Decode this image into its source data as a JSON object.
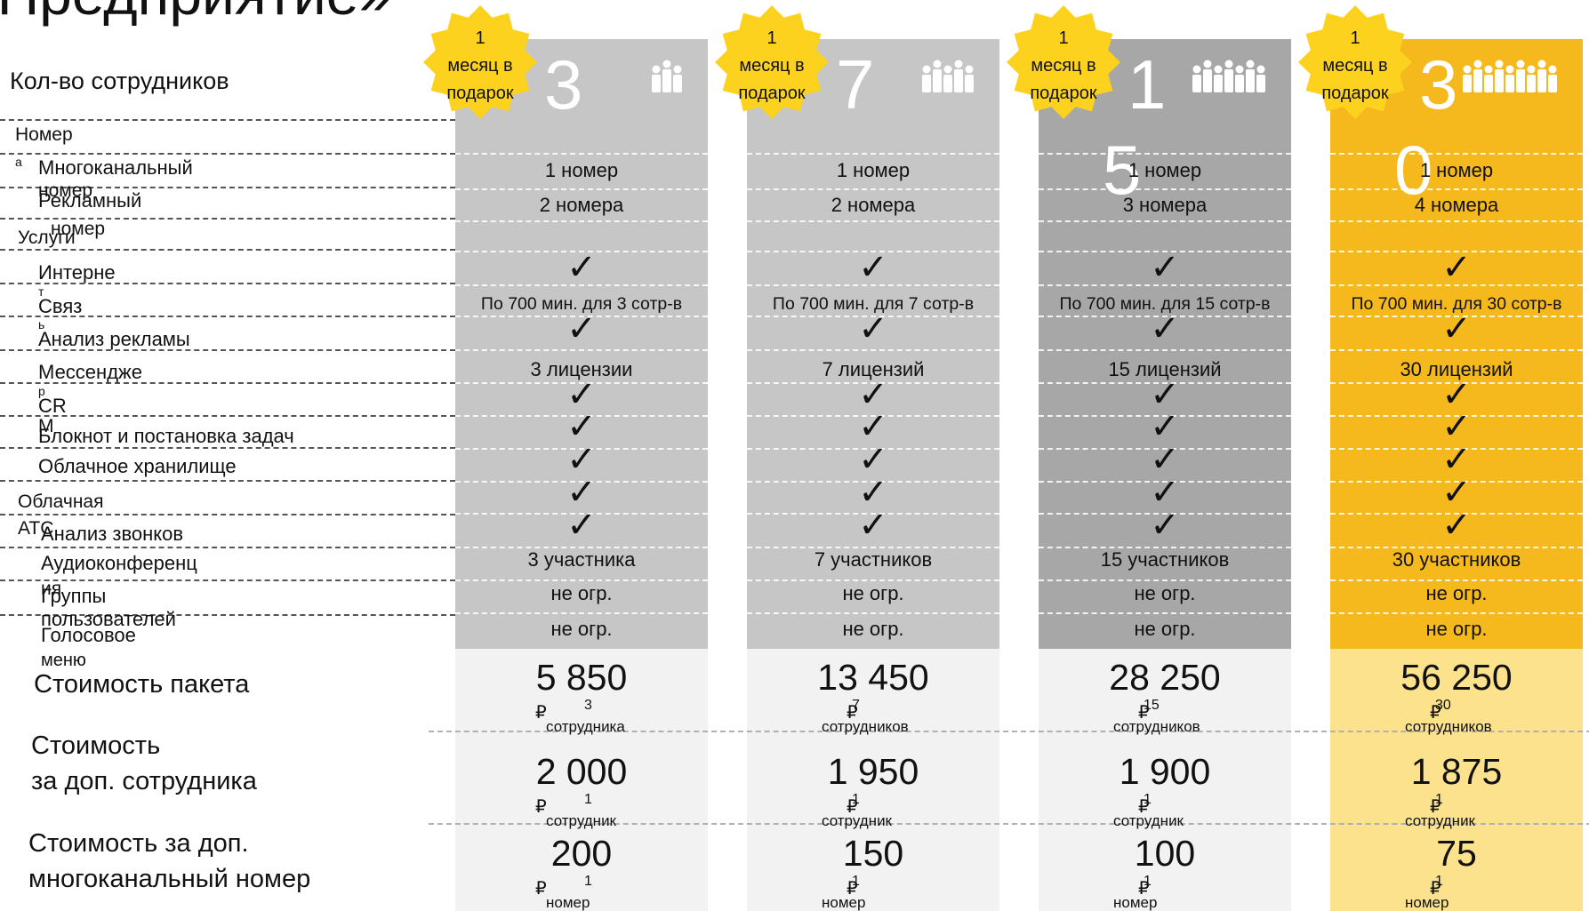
{
  "title": "«Предприятие»",
  "header_left": "Кол-во сотрудников",
  "gift": {
    "line1": "1",
    "line2": "месяц в",
    "line3": "подарок"
  },
  "labels": {
    "numbers_cat": "Номер",
    "numbers_cat_tail": "а",
    "multichannel": "Многоканальный",
    "multichannel_tail": "номер",
    "ad_number": "Рекламный",
    "ad_number_tail": "номер",
    "services_cat": "Услуги",
    "internet": "Интерне",
    "internet_tail": "т",
    "connection": "Связ",
    "connection_tail": "ь",
    "ad_analysis": "Анализ рекламы",
    "messenger": "Мессендже",
    "messenger_tail": "р",
    "crm": "CR",
    "crm_tail": "M",
    "notebook": "Блокнот и постановка задач",
    "cloud_storage": "Облачное хранилище",
    "cloud_pbx_cat": "Облачная",
    "cloud_pbx_cat_tail": "АТС",
    "call_analysis": "Анализ звонков",
    "audioconf": "Аудиоконференц",
    "audioconf_tail": "ия",
    "user_groups": "Группы",
    "user_groups_tail": "пользователей",
    "voice_menu": "Голосовое",
    "voice_menu_tail": "меню",
    "package_cost": "Стоимость пакета",
    "extra_emp_cost_1": "Стоимость",
    "extra_emp_cost_2": "за доп. сотрудника",
    "extra_num_cost_1": "Стоимость за доп.",
    "extra_num_cost_2": "многоканальный номер"
  },
  "colors": {
    "col_light": "#c6c6c6",
    "col_mid": "#b2b2b2",
    "col_dark": "#a7a7a7",
    "col_accent": "#f5b91d",
    "price_grey": "#f2f2f2",
    "price_accent": "#fde28e",
    "burst": "#fdd21e"
  },
  "columns": [
    {
      "headcount": "3",
      "multichannel": "1 номер",
      "ad_number": "2 номера",
      "connection": "По 700 мин. для 3 сотр-в",
      "messenger": "3 лицензии",
      "audioconf": "3 участника",
      "user_groups": "не огр.",
      "voice_menu": "не огр.",
      "package_price": "5 850",
      "package_count": "3",
      "package_unit": "сотрудника",
      "extra_emp_price": "2 000",
      "extra_emp_count": "1",
      "extra_emp_unit": "сотрудник",
      "extra_num_price": "200",
      "extra_num_count": "1",
      "extra_num_unit": "номер",
      "rub": "₽"
    },
    {
      "headcount": "7",
      "multichannel": "1 номер",
      "ad_number": "2 номера",
      "connection": "По 700 мин. для 7 сотр-в",
      "messenger": "7 лицензий",
      "audioconf": "7 участников",
      "user_groups": "не огр.",
      "voice_menu": "не огр.",
      "package_price": "13 450",
      "package_count": "7",
      "package_unit": "сотрудников",
      "extra_emp_price": "1 950",
      "extra_emp_count": "1",
      "extra_emp_unit": "сотрудник",
      "extra_num_price": "150",
      "extra_num_count": "1",
      "extra_num_unit": "номер",
      "rub": "₽"
    },
    {
      "headcount": "1",
      "headcount_tail": "5",
      "multichannel": "1 номер",
      "ad_number": "3 номера",
      "connection": "По 700 мин. для 15 сотр-в",
      "messenger": "15 лицензий",
      "audioconf": "15 участников",
      "user_groups": "не огр.",
      "voice_menu": "не огр.",
      "package_price": "28 250",
      "package_count": "15",
      "package_unit": "сотрудников",
      "extra_emp_price": "1 900",
      "extra_emp_count": "1",
      "extra_emp_unit": "сотрудник",
      "extra_num_price": "100",
      "extra_num_count": "1",
      "extra_num_unit": "номер",
      "rub": "₽"
    },
    {
      "headcount": "3",
      "headcount_tail": "0",
      "multichannel": "1 номер",
      "ad_number": "4 номера",
      "connection": "По 700 мин. для 30 сотр-в",
      "messenger": "30 лицензий",
      "audioconf": "30 участников",
      "user_groups": "не огр.",
      "voice_menu": "не огр.",
      "package_price": "56 250",
      "package_count": "30",
      "package_unit": "сотрудников",
      "extra_emp_price": "1 875",
      "extra_emp_count": "1",
      "extra_emp_unit": "сотрудник",
      "extra_num_price": "75",
      "extra_num_count": "1",
      "extra_num_unit": "номер",
      "rub": "₽"
    }
  ]
}
